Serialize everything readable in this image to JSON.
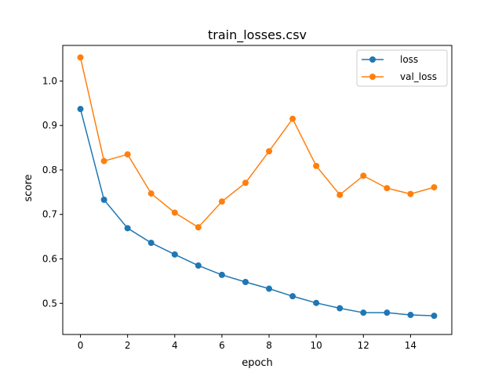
{
  "chart_data": {
    "type": "line",
    "title": "train_losses.csv",
    "xlabel": "epoch",
    "ylabel": "score",
    "x": [
      0,
      1,
      2,
      3,
      4,
      5,
      6,
      7,
      8,
      9,
      10,
      11,
      12,
      13,
      14,
      15
    ],
    "xlim": [
      -0.75,
      15.75
    ],
    "ylim": [
      0.43,
      1.08
    ],
    "xticks": [
      0,
      2,
      4,
      6,
      8,
      10,
      12,
      14
    ],
    "yticks": [
      0.5,
      0.6,
      0.7,
      0.8,
      0.9,
      1.0
    ],
    "xtick_labels": [
      "0",
      "2",
      "4",
      "6",
      "8",
      "10",
      "12",
      "14"
    ],
    "ytick_labels": [
      "0.5",
      "0.6",
      "0.7",
      "0.8",
      "0.9",
      "1.0"
    ],
    "grid": false,
    "legend_position": "top-right",
    "series": [
      {
        "name": "loss",
        "color": "#1f77b4",
        "marker": "circle",
        "values": [
          0.937,
          0.733,
          0.669,
          0.636,
          0.61,
          0.585,
          0.564,
          0.548,
          0.533,
          0.516,
          0.501,
          0.489,
          0.479,
          0.479,
          0.474,
          0.472
        ]
      },
      {
        "name": "val_loss",
        "color": "#ff7f0e",
        "marker": "circle",
        "values": [
          1.053,
          0.82,
          0.835,
          0.747,
          0.704,
          0.671,
          0.729,
          0.771,
          0.842,
          0.915,
          0.809,
          0.744,
          0.787,
          0.759,
          0.746,
          0.761
        ]
      }
    ]
  }
}
